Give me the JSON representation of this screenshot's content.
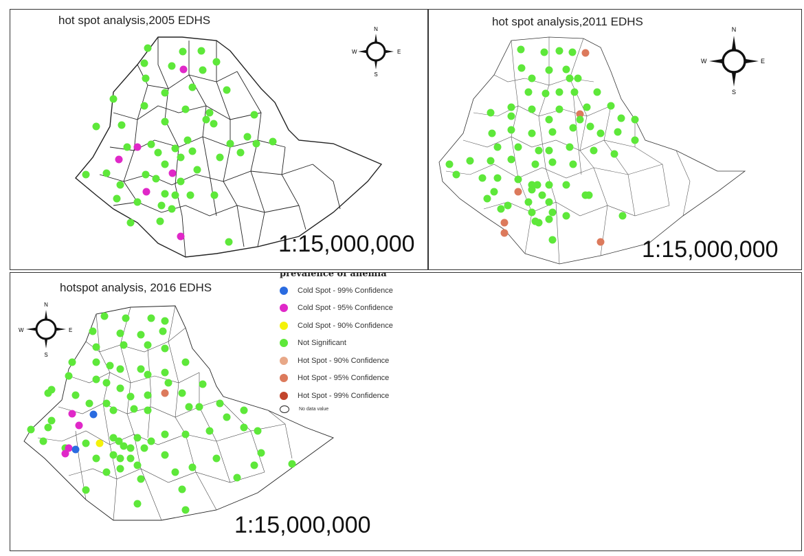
{
  "colors": {
    "not_significant": "#5ee83a",
    "cold_99": "#2a6be0",
    "cold_95": "#e028c8",
    "cold_90": "#f4f20a",
    "hot_90": "#e8a888",
    "hot_95": "#dc7a5c",
    "hot_99": "#c2452c",
    "boundary": "#222222"
  },
  "compass_letters": {
    "n": "N",
    "s": "S",
    "e": "E",
    "w": "W"
  },
  "panels": [
    {
      "title": "hot spot analysis,2005 EDHS",
      "scale": "1:15,000,000"
    },
    {
      "title": "hot spot analysis,2011 EDHS",
      "scale": "1:15,000,000"
    },
    {
      "title": "hotspot analysis, 2016 EDHS",
      "scale": "1:15,000,000"
    }
  ],
  "legend": {
    "title": "prevalence of anemia",
    "items": [
      {
        "label": "Cold Spot - 99% Confidence",
        "color": "#2a6be0"
      },
      {
        "label": "Cold Spot - 95% Confidence",
        "color": "#e028c8"
      },
      {
        "label": "Cold Spot - 90% Confidence",
        "color": "#f4f20a"
      },
      {
        "label": "Not Significant",
        "color": "#5ee83a"
      },
      {
        "label": "Hot Spot - 90% Confidence",
        "color": "#e8a888"
      },
      {
        "label": "Hot Spot - 95% Confidence",
        "color": "#dc7a5c"
      },
      {
        "label": "Hot Spot - 99% Confidence",
        "color": "#c2452c"
      }
    ],
    "no_data_label": "No data value"
  }
}
